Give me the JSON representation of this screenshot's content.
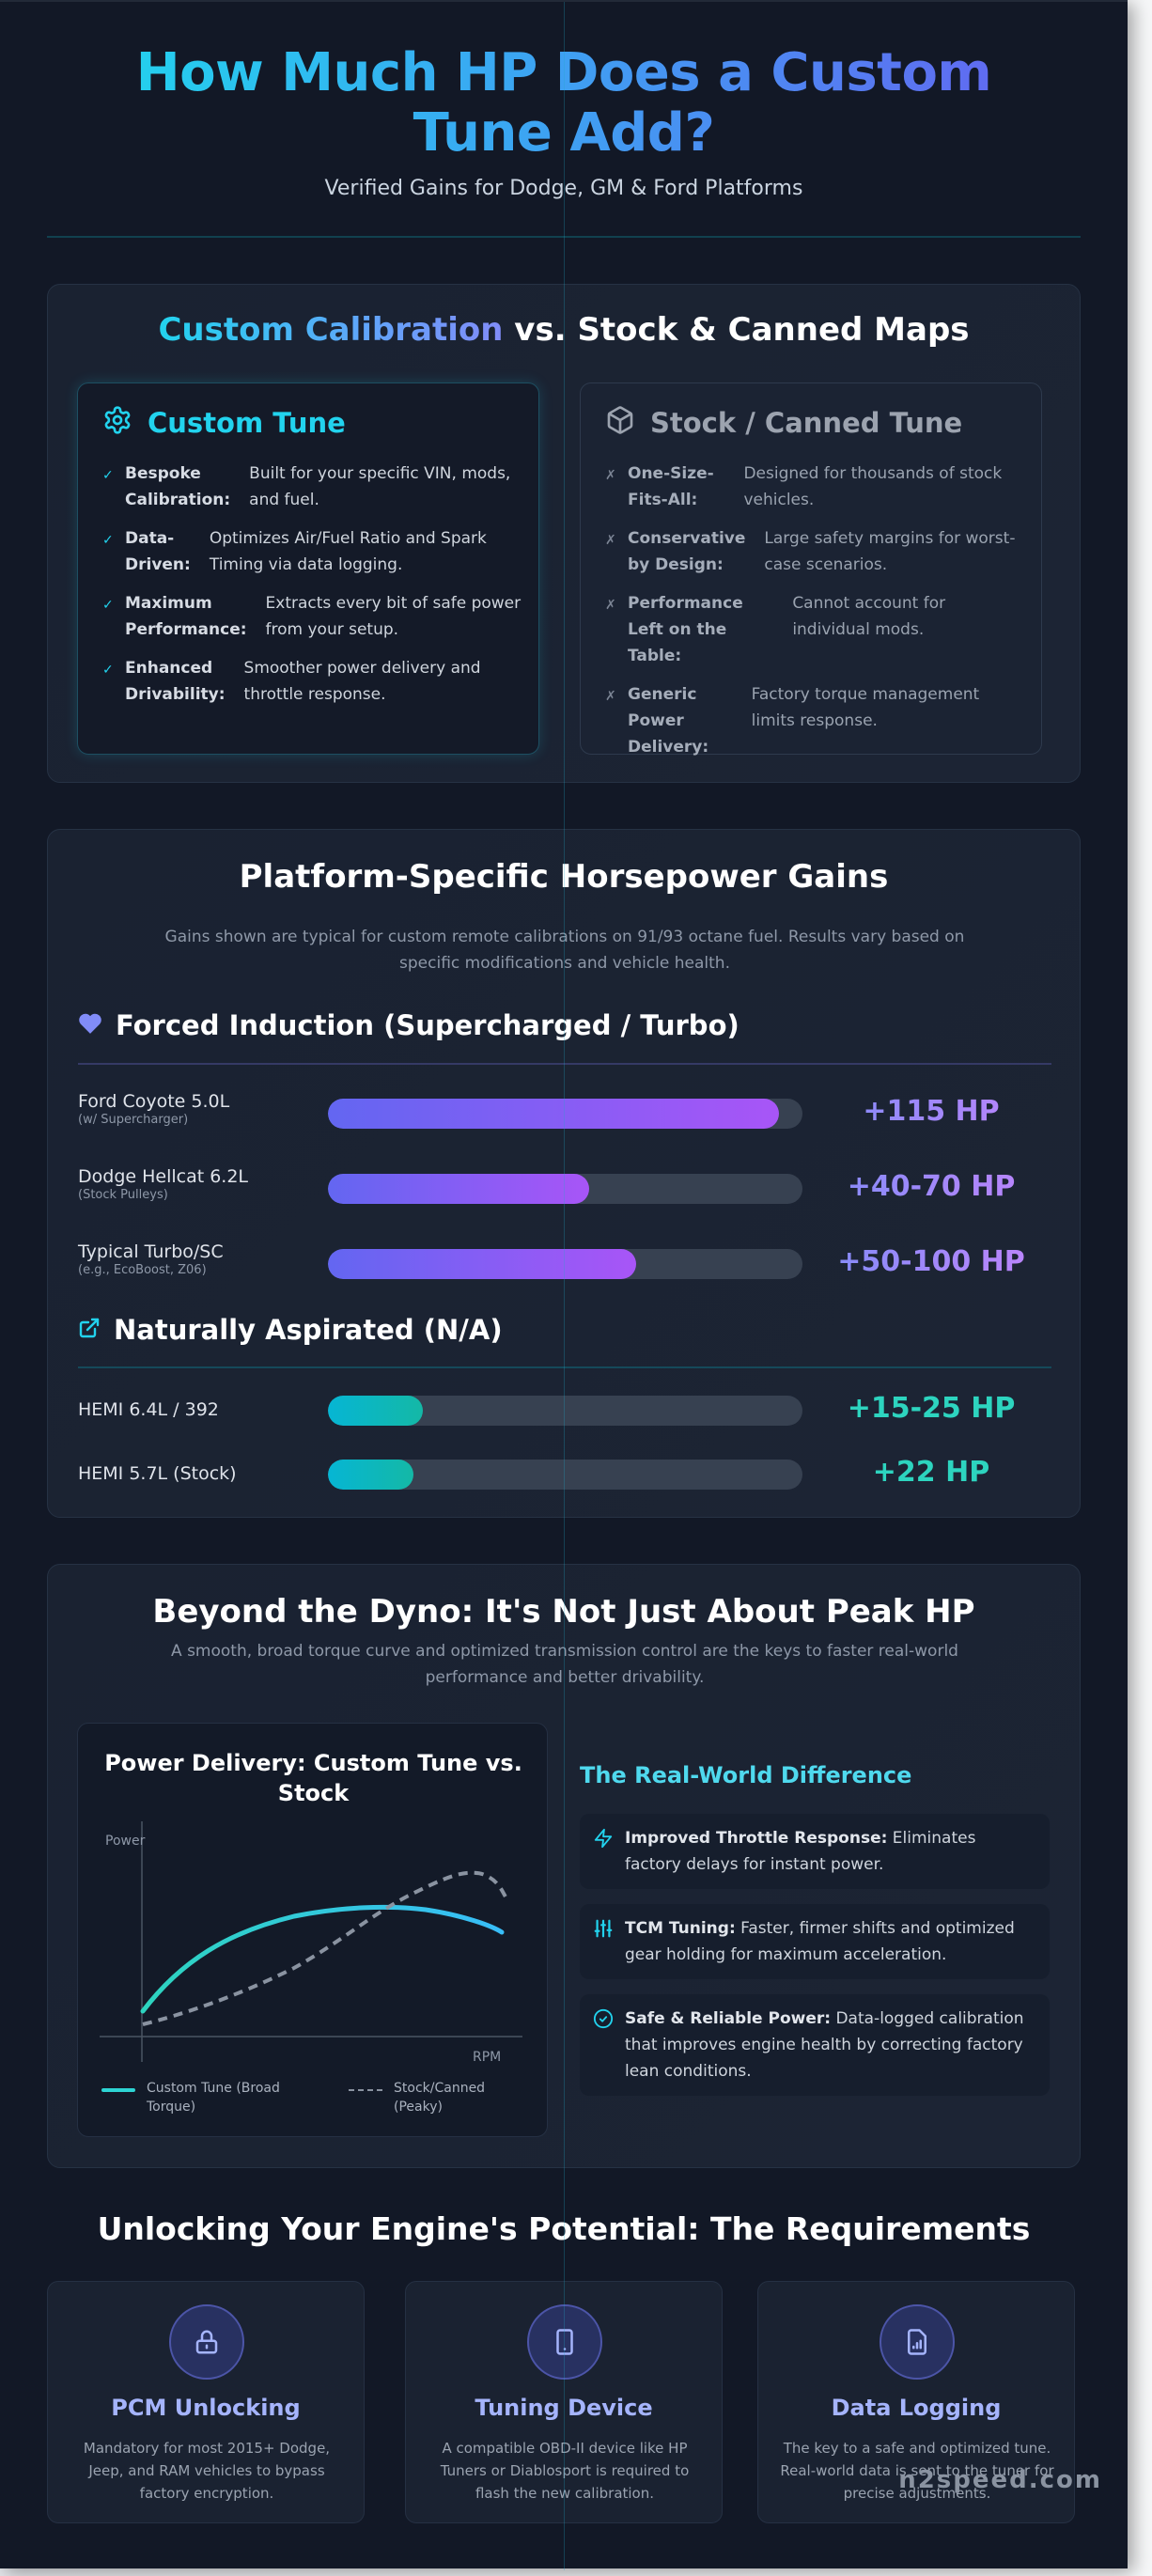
{
  "header": {
    "title": "How Much HP Does a Custom Tune Add?",
    "subtitle": "Verified Gains for Dodge, GM & Ford Platforms"
  },
  "comparison": {
    "title_highlight": "Custom Calibration",
    "title_rest": " vs. Stock & Canned Maps",
    "custom": {
      "title": "Custom Tune",
      "icon": "gear-icon",
      "mark": "✓",
      "items": [
        {
          "label": "Bespoke Calibration:",
          "desc": "Built for your specific VIN, mods, and fuel."
        },
        {
          "label": "Data-Driven:",
          "desc": "Optimizes Air/Fuel Ratio and Spark Timing via data logging."
        },
        {
          "label": "Maximum Performance:",
          "desc": "Extracts every bit of safe power from your setup."
        },
        {
          "label": "Enhanced Drivability:",
          "desc": "Smoother power delivery and throttle response."
        }
      ]
    },
    "stock": {
      "title": "Stock / Canned Tune",
      "icon": "cube-icon",
      "mark": "✗",
      "items": [
        {
          "label": "One-Size-Fits-All:",
          "desc": "Designed for thousands of stock vehicles."
        },
        {
          "label": "Conservative by Design:",
          "desc": "Large safety margins for worst-case scenarios."
        },
        {
          "label": "Performance Left on the Table:",
          "desc": "Cannot account for individual mods."
        },
        {
          "label": "Generic Power Delivery:",
          "desc": "Factory torque management limits response."
        }
      ]
    }
  },
  "gains": {
    "title": "Platform-Specific Horsepower Gains",
    "note": "Gains shown are typical for custom remote calibrations on 91/93 octane fuel. Results vary based on specific modifications and vehicle health.",
    "forced_induction": {
      "title": "Forced Induction (Supercharged / Turbo)",
      "icon": "heart-icon",
      "color": "#818cf8",
      "rows": [
        {
          "name": "Ford Coyote 5.0L",
          "sub": "(w/ Supercharger)",
          "value": "+115 HP",
          "pct": 95
        },
        {
          "name": "Dodge Hellcat 6.2L",
          "sub": "(Stock Pulleys)",
          "value": "+40-70 HP",
          "pct": 55
        },
        {
          "name": "Typical Turbo/SC",
          "sub": "(e.g., EcoBoost, Z06)",
          "value": "+50-100 HP",
          "pct": 65
        }
      ]
    },
    "naturally_aspirated": {
      "title": "Naturally Aspirated (N/A)",
      "icon": "external-link-icon",
      "color": "#22d3ee",
      "rows": [
        {
          "name": "HEMI 6.4L / 392",
          "value": "+15-25 HP",
          "pct": 20
        },
        {
          "name": "HEMI 5.7L (Stock)",
          "value": "+22 HP",
          "pct": 18
        }
      ]
    }
  },
  "beyond": {
    "title": "Beyond the Dyno: It's Not Just About Peak HP",
    "subtitle": "A smooth, broad torque curve and optimized transmission control are the keys to faster real-world performance and better drivability.",
    "chart": {
      "title": "Power Delivery: Custom Tune vs. Stock",
      "y_label": "Power",
      "x_label": "RPM",
      "legend_custom": "Custom Tune (Broad Torque)",
      "legend_stock": "Stock/Canned (Peaky)"
    },
    "real_world": {
      "title": "The Real-World Difference",
      "items": [
        {
          "icon": "lightning-icon",
          "bold": "Improved Throttle Response:",
          "text": " Eliminates factory delays for instant power."
        },
        {
          "icon": "sliders-icon",
          "bold": "TCM Tuning:",
          "text": " Faster, firmer shifts and optimized gear holding for maximum acceleration."
        },
        {
          "icon": "check-circle-icon",
          "bold": "Safe & Reliable Power:",
          "text": " Data-logged calibration that improves engine health by correcting factory lean conditions."
        }
      ]
    }
  },
  "requirements": {
    "title": "Unlocking Your Engine's Potential: The Requirements",
    "items": [
      {
        "icon": "lock-icon",
        "name": "PCM Unlocking",
        "desc": "Mandatory for most 2015+ Dodge, Jeep, and RAM vehicles to bypass factory encryption."
      },
      {
        "icon": "phone-icon",
        "name": "Tuning Device",
        "desc": "A compatible OBD-II device like HP Tuners or Diablosport is required to flash the new calibration."
      },
      {
        "icon": "file-chart-icon",
        "name": "Data Logging",
        "desc": "The key to a safe and optimized tune. Real-world data is sent to the tuner for precise adjustments."
      }
    ]
  },
  "footer": {
    "brand": "n2speed.com"
  },
  "chart_data": {
    "type": "line",
    "title": "Power Delivery: Custom Tune vs. Stock",
    "xlabel": "RPM",
    "ylabel": "Power",
    "x": [
      0,
      10,
      20,
      30,
      40,
      50,
      60,
      70,
      80,
      90,
      100
    ],
    "series": [
      {
        "name": "Custom Tune (Broad Torque)",
        "style": "solid",
        "color": "#2dd4d4",
        "values": [
          10,
          38,
          55,
          66,
          72,
          74,
          74,
          72,
          68,
          62,
          55
        ]
      },
      {
        "name": "Stock/Canned (Peaky)",
        "style": "dashed",
        "color": "#8a93a1",
        "values": [
          5,
          10,
          16,
          24,
          36,
          52,
          70,
          84,
          92,
          92,
          78
        ]
      }
    ],
    "grid": false,
    "legend_position": "bottom"
  }
}
